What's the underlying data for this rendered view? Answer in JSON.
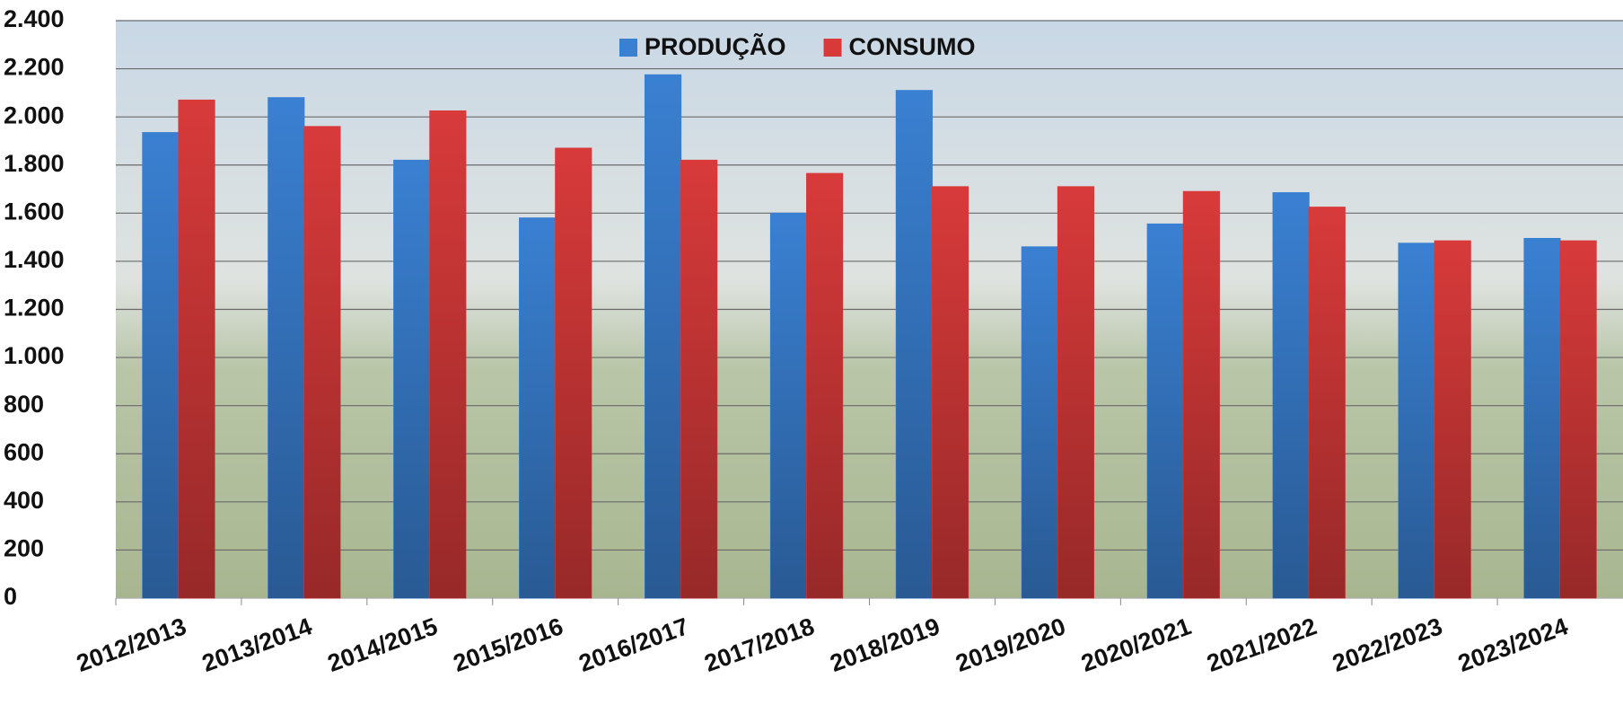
{
  "chart_data": {
    "type": "bar",
    "categories": [
      "2012/2013",
      "2013/2014",
      "2014/2015",
      "2015/2016",
      "2016/2017",
      "2017/2018",
      "2018/2019",
      "2019/2020",
      "2020/2021",
      "2021/2022",
      "2022/2023",
      "2023/2024"
    ],
    "series": [
      {
        "name": "PRODUÇÃO",
        "color": "#3a80d2",
        "values": [
          1935,
          2080,
          1820,
          1580,
          2175,
          1600,
          2110,
          1460,
          1555,
          1685,
          1475,
          1495
        ]
      },
      {
        "name": "CONSUMO",
        "color": "#d83a3a",
        "values": [
          2070,
          1960,
          2025,
          1870,
          1820,
          1765,
          1710,
          1710,
          1690,
          1625,
          1485,
          1485
        ]
      }
    ],
    "ylim": [
      0,
      2400
    ],
    "yticks": [
      0,
      200,
      400,
      600,
      800,
      {
        "value": 1000,
        "label": "1.000"
      },
      {
        "value": 1200,
        "label": "1.200"
      },
      {
        "value": 1400,
        "label": "1.400"
      },
      {
        "value": 1600,
        "label": "1.600"
      },
      {
        "value": 1800,
        "label": "1.800"
      },
      {
        "value": 2000,
        "label": "2.000"
      },
      {
        "value": 2200,
        "label": "2.200"
      },
      {
        "value": 2400,
        "label": "2.400"
      }
    ],
    "grid": true,
    "legend": "top"
  }
}
